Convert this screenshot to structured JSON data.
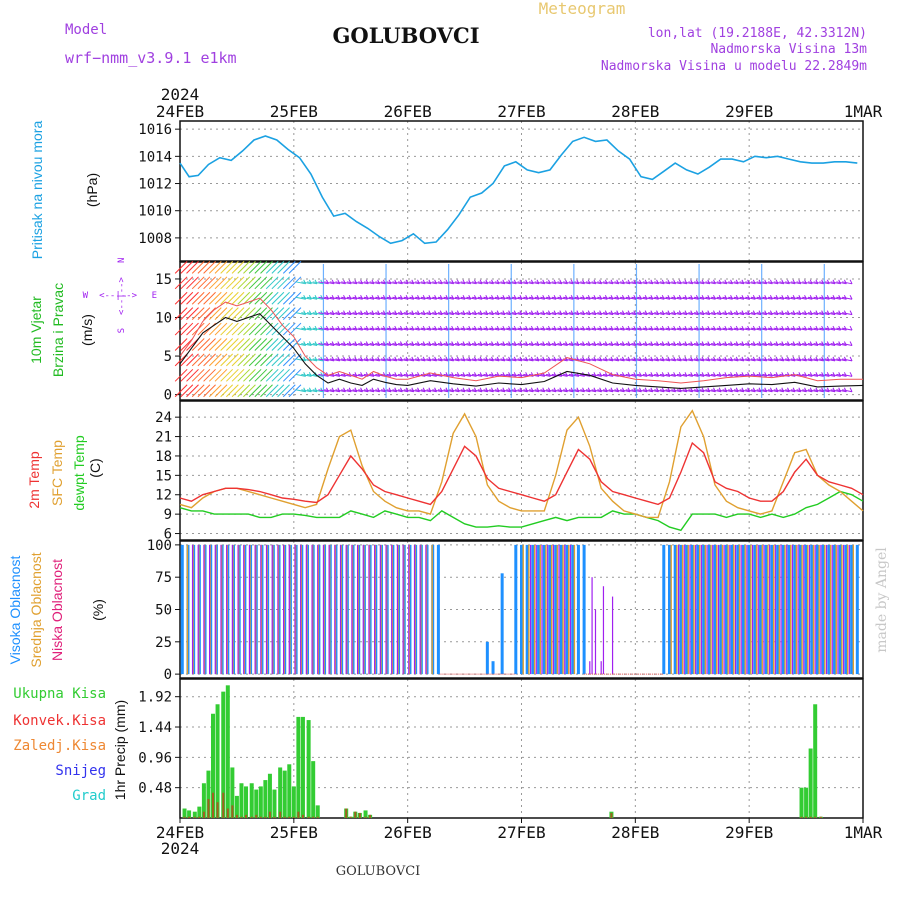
{
  "header": {
    "model_label": "Model",
    "model_name": "wrf−nmm_v3.9.1  e1km",
    "title": "GOLUBOVCI",
    "meteogram_label": "Meteogram",
    "lonlat": "lon,lat (19.2188E, 42.3312N)",
    "altitude": "Nadmorska Visina 13m",
    "model_altitude": "Nadmorska Visina u modelu 22.2849m",
    "footer_station": "GOLUBOVCI",
    "watermark": "made by Angel"
  },
  "colors": {
    "pressure": "#1ba1e2",
    "wind_green": "#22bb22",
    "wind_purple": "#a020f0",
    "temp_red": "#ee3333",
    "temp_orange": "#e0a030",
    "dewpt_green": "#22cc22",
    "cloud_high": "#1e90ff",
    "cloud_mid": "#e0a030",
    "cloud_low": "#a020f0",
    "precip_total": "#33cc33",
    "precip_conv": "#ee3333",
    "precip_frozen": "#ee8833",
    "snow": "#3333ee",
    "hail": "#22cccc",
    "title": "#111111",
    "model_text": "#a040e0",
    "meteogram_text": "#e8c870"
  },
  "chart_data": [
    {
      "type": "line",
      "name": "pressure",
      "ylabel": "Pritisak na nivou mora",
      "unit": "(hPa)",
      "ylim": [
        1006.3,
        1016.6
      ],
      "yticks": [
        1008,
        1010,
        1012,
        1014,
        1016
      ],
      "x_days": [
        0,
        0.08,
        0.16,
        0.25,
        0.35,
        0.45,
        0.55,
        0.65,
        0.75,
        0.85,
        0.95,
        1.05,
        1.15,
        1.25,
        1.35,
        1.45,
        1.55,
        1.65,
        1.75,
        1.85,
        1.95,
        2.05,
        2.15,
        2.25,
        2.35,
        2.45,
        2.55,
        2.65,
        2.75,
        2.85,
        2.95,
        3.05,
        3.15,
        3.25,
        3.35,
        3.45,
        3.55,
        3.65,
        3.75,
        3.85,
        3.95,
        4.05,
        4.15,
        4.25,
        4.35,
        4.45,
        4.55,
        4.65,
        4.75,
        4.85,
        4.95,
        5.05,
        5.15,
        5.25,
        5.35,
        5.45,
        5.55,
        5.65,
        5.75,
        5.85,
        5.95
      ],
      "values": [
        1013.5,
        1012.5,
        1012.6,
        1013.4,
        1013.9,
        1013.7,
        1014.4,
        1015.2,
        1015.5,
        1015.2,
        1014.5,
        1013.9,
        1012.7,
        1011.0,
        1009.6,
        1009.8,
        1009.2,
        1008.7,
        1008.1,
        1007.6,
        1007.8,
        1008.3,
        1007.6,
        1007.7,
        1008.6,
        1009.7,
        1011.0,
        1011.3,
        1012.0,
        1013.3,
        1013.6,
        1013.0,
        1012.8,
        1013.0,
        1014.1,
        1015.1,
        1015.4,
        1015.1,
        1015.2,
        1014.4,
        1013.8,
        1012.5,
        1012.3,
        1012.9,
        1013.5,
        1013.0,
        1012.7,
        1013.2,
        1013.8,
        1013.8,
        1013.6,
        1014.0,
        1013.9,
        1014.0,
        1013.8,
        1013.6,
        1013.5,
        1013.5,
        1013.6,
        1013.6,
        1013.5
      ]
    },
    {
      "type": "line",
      "name": "wind",
      "ylabel": "10m Vjetar",
      "ylabel2": "Brzina i Pravac",
      "unit": "(m/s)",
      "compass": [
        "W",
        "<--|-->",
        "E",
        "S",
        "<--|-->",
        "N"
      ],
      "ylim": [
        -0.7,
        17.2
      ],
      "yticks": [
        0,
        5,
        10,
        15
      ],
      "x_days": [
        0,
        0.1,
        0.2,
        0.3,
        0.4,
        0.5,
        0.6,
        0.7,
        0.8,
        0.9,
        1.0,
        1.1,
        1.2,
        1.3,
        1.4,
        1.5,
        1.6,
        1.7,
        1.8,
        1.9,
        2.0,
        2.2,
        2.4,
        2.6,
        2.8,
        3.0,
        3.2,
        3.4,
        3.6,
        3.8,
        4.0,
        4.2,
        4.4,
        4.6,
        4.8,
        5.0,
        5.2,
        5.4,
        5.6,
        5.8,
        6.0
      ],
      "speed": [
        4,
        6,
        8,
        9,
        10,
        9.5,
        10,
        10.5,
        9,
        7.5,
        6,
        4,
        2.5,
        1.5,
        2,
        1.5,
        1.2,
        2,
        1.6,
        1.3,
        1.2,
        1.8,
        1.4,
        1.1,
        1.5,
        1.3,
        1.7,
        3,
        2.5,
        1.5,
        1.2,
        1.0,
        0.8,
        1.0,
        1.2,
        1.4,
        1.3,
        1.6,
        1.0,
        1.1,
        1.2
      ],
      "gust": [
        5,
        7,
        9.5,
        11,
        12,
        11.5,
        12,
        12.5,
        11,
        9,
        7.5,
        5,
        3.5,
        2.5,
        3.0,
        2.5,
        2.0,
        3.0,
        2.4,
        2.0,
        2.0,
        2.8,
        2.2,
        1.8,
        2.4,
        2.2,
        2.8,
        4.8,
        4.0,
        2.6,
        2.0,
        1.8,
        1.5,
        1.8,
        2.2,
        2.4,
        2.2,
        2.6,
        1.8,
        2.0,
        2.0
      ]
    },
    {
      "type": "line",
      "name": "temperature",
      "ylabel": "2m Temp",
      "ylabel2": "SFC Temp",
      "ylabel3": "dewpt Temp",
      "unit": "(C)",
      "ylim": [
        5.0,
        26.5
      ],
      "yticks": [
        6,
        9,
        12,
        15,
        18,
        21,
        24
      ],
      "x_days": [
        0,
        0.1,
        0.2,
        0.3,
        0.4,
        0.5,
        0.6,
        0.7,
        0.8,
        0.9,
        1.0,
        1.1,
        1.2,
        1.3,
        1.4,
        1.5,
        1.6,
        1.7,
        1.8,
        1.9,
        2.0,
        2.1,
        2.2,
        2.3,
        2.4,
        2.5,
        2.6,
        2.7,
        2.8,
        2.9,
        3.0,
        3.1,
        3.2,
        3.3,
        3.4,
        3.5,
        3.6,
        3.7,
        3.8,
        3.9,
        4.0,
        4.1,
        4.2,
        4.3,
        4.4,
        4.5,
        4.6,
        4.7,
        4.8,
        4.9,
        5.0,
        5.1,
        5.2,
        5.3,
        5.4,
        5.5,
        5.6,
        5.7,
        5.8,
        5.9,
        6.0
      ],
      "t2m": [
        11.5,
        11.0,
        12.0,
        12.5,
        13.0,
        13.0,
        12.8,
        12.5,
        12.0,
        11.5,
        11.3,
        11.0,
        10.8,
        12.0,
        15.0,
        18.0,
        16.0,
        13.5,
        12.5,
        12.0,
        11.5,
        11.0,
        10.5,
        12.5,
        16.0,
        19.5,
        18.0,
        14.5,
        13.0,
        12.5,
        12.0,
        11.5,
        11.0,
        12.0,
        15.5,
        19.0,
        17.5,
        14.0,
        12.5,
        12.0,
        11.5,
        11.0,
        10.5,
        11.5,
        15.5,
        20.0,
        18.5,
        14.0,
        13.0,
        12.5,
        11.5,
        11.0,
        11.0,
        12.5,
        15.5,
        17.5,
        15.0,
        14.0,
        13.5,
        13.0,
        12.0
      ],
      "sfc": [
        10.5,
        10.0,
        11.5,
        12.5,
        13.0,
        13.0,
        12.5,
        12.0,
        11.5,
        11.0,
        10.5,
        10.0,
        10.5,
        16.0,
        21.0,
        22.0,
        16.5,
        12.5,
        11.0,
        10.0,
        9.5,
        9.5,
        9.0,
        14.0,
        21.5,
        24.5,
        21.0,
        13.5,
        11.0,
        10.0,
        9.5,
        9.5,
        9.5,
        15.0,
        22.0,
        24.0,
        19.5,
        13.0,
        11.0,
        9.5,
        9.0,
        8.5,
        8.5,
        14.0,
        22.5,
        25.0,
        21.0,
        13.5,
        11.0,
        10.0,
        9.5,
        9.0,
        9.5,
        14.0,
        18.5,
        19.0,
        15.0,
        13.5,
        12.5,
        11.0,
        9.5
      ],
      "dewpt": [
        10.0,
        9.5,
        9.5,
        9.0,
        9.0,
        9.0,
        9.0,
        8.5,
        8.5,
        9.0,
        9.0,
        8.8,
        8.5,
        8.5,
        8.5,
        9.5,
        9.0,
        8.5,
        9.5,
        9.0,
        8.5,
        8.5,
        8.0,
        9.5,
        8.5,
        7.5,
        7.0,
        7.0,
        7.2,
        7.0,
        7.0,
        7.5,
        8.0,
        8.5,
        8.0,
        8.5,
        8.5,
        8.5,
        9.5,
        9.0,
        9.0,
        8.5,
        8.0,
        7.0,
        6.5,
        9.0,
        9.0,
        9.0,
        8.5,
        9.0,
        9.0,
        8.5,
        9.0,
        8.5,
        9.0,
        10.0,
        10.5,
        11.5,
        12.5,
        12.0,
        11.0
      ]
    },
    {
      "type": "bar",
      "name": "clouds",
      "ylabel": "Visoka Oblacnost",
      "ylabel2": "Srednja Oblacnost",
      "ylabel3": "Niska Oblacnost",
      "unit": "(%)",
      "ylim": [
        -3,
        103
      ],
      "yticks": [
        0,
        25,
        50,
        75,
        100
      ],
      "high_segments": [
        [
          0.02,
          2.28,
          100
        ],
        [
          2.95,
          3.55,
          100
        ],
        [
          4.25,
          5.99,
          100
        ]
      ],
      "mid_segments": [
        [
          0.05,
          2.25,
          100
        ],
        [
          3.0,
          3.5,
          100
        ],
        [
          4.3,
          5.95,
          100
        ]
      ],
      "low_segments": [
        [
          0.08,
          2.2,
          100
        ],
        [
          3.05,
          3.45,
          100
        ],
        [
          4.35,
          5.9,
          100
        ]
      ],
      "sparse_bars": [
        [
          2.7,
          25
        ],
        [
          2.75,
          10
        ],
        [
          2.83,
          78
        ],
        [
          3.6,
          10
        ],
        [
          3.62,
          75
        ],
        [
          3.65,
          50
        ],
        [
          3.7,
          10
        ],
        [
          3.72,
          68
        ],
        [
          3.8,
          60
        ]
      ]
    },
    {
      "type": "bar",
      "name": "precipitation",
      "ylabel": "1hr Precip",
      "unit": "(mm)",
      "legend": [
        "Ukupna  Kisa",
        "Konvek.Kisa",
        "Zaledj.Kisa",
        "Snijeg",
        "Grad"
      ],
      "ylim": [
        0,
        2.2
      ],
      "yticks": [
        0.48,
        0.96,
        1.44,
        1.92
      ],
      "x_days": [
        0.04,
        0.08,
        0.13,
        0.17,
        0.21,
        0.25,
        0.29,
        0.33,
        0.38,
        0.42,
        0.46,
        0.5,
        0.54,
        0.58,
        0.63,
        0.67,
        0.71,
        0.75,
        0.79,
        0.83,
        0.88,
        0.92,
        0.96,
        1.0,
        1.04,
        1.08,
        1.13,
        1.17,
        1.21,
        1.46,
        1.5,
        1.54,
        1.58,
        1.63,
        1.67,
        3.79,
        5.46,
        5.5,
        5.54,
        5.58,
        5.63
      ],
      "total": [
        0.15,
        0.12,
        0.1,
        0.18,
        0.55,
        0.75,
        1.65,
        1.8,
        2.0,
        2.1,
        0.8,
        0.35,
        0.55,
        0.5,
        0.55,
        0.45,
        0.5,
        0.6,
        0.7,
        0.45,
        0.8,
        0.75,
        0.85,
        0.5,
        1.6,
        1.6,
        1.55,
        0.9,
        0.2,
        0.15,
        0.02,
        0.1,
        0.08,
        0.12,
        0.05,
        0.1,
        0.48,
        0.48,
        1.1,
        1.8,
        0.02
      ],
      "conv": [
        0.02,
        0.02,
        0.02,
        0.02,
        0.1,
        0.3,
        0.4,
        0.25,
        0.4,
        0.15,
        0.2,
        0.05,
        0.02,
        0.05,
        0.02,
        0.05,
        0.02,
        0.02,
        0.1,
        0.02,
        0.1,
        0.02,
        0.02,
        0.02,
        0.1,
        0.05,
        0.02,
        0.02,
        0.02,
        0.15,
        0.02,
        0.1,
        0.08,
        0.02,
        0.05,
        0.08,
        0.02,
        0.02,
        0.02,
        0.02,
        0.02
      ]
    }
  ],
  "x_axis": {
    "year": "2024",
    "labels": [
      "24FEB",
      "25FEB",
      "26FEB",
      "27FEB",
      "28FEB",
      "29FEB",
      "1MAR"
    ]
  }
}
